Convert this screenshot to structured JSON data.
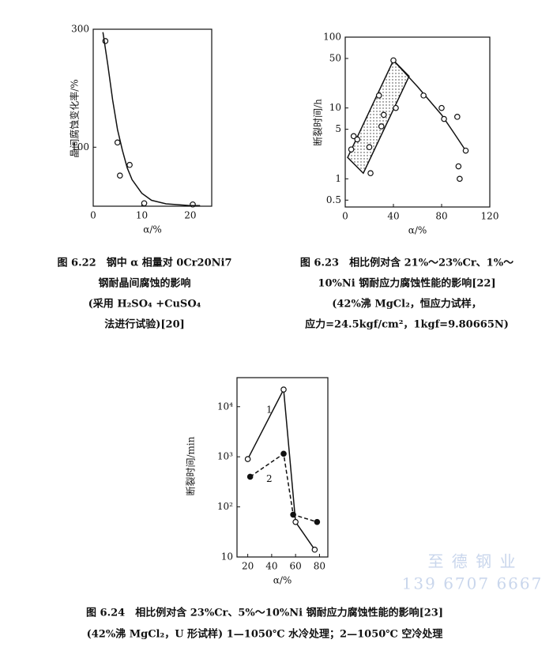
{
  "chart_data": [
    {
      "type": "line",
      "ylabel": "晶间腐蚀变化率/%",
      "xlabel": "α/%",
      "xlim": [
        0,
        24.4
      ],
      "xticks": [
        0,
        10,
        20
      ],
      "ylim": [
        0,
        300
      ],
      "yticks": [
        100,
        300
      ],
      "log_y": false,
      "series": [
        {
          "x": [
            2.5,
            5,
            5.5,
            7.5,
            10.5,
            20.5
          ],
          "values": [
            280,
            108,
            52,
            70,
            5,
            3
          ],
          "marker": "open",
          "line": "none",
          "color": "#111111"
        },
        {
          "x": [
            2,
            3,
            4,
            5,
            6,
            7,
            8,
            10,
            12,
            15,
            20,
            22
          ],
          "values": [
            295,
            240,
            180,
            130,
            95,
            65,
            45,
            22,
            10,
            4,
            1,
            1
          ],
          "marker": "none",
          "line": "solid",
          "color": "#111111"
        }
      ],
      "caption": [
        "图 6.22　钢中 α 相量对 0Cr20Ni7",
        "钢耐晶间腐蚀的影响",
        "(采用 H₂SO₄ +CuSO₄",
        "法进行试验)[20]"
      ]
    },
    {
      "type": "line",
      "ylabel": "断裂时间/h",
      "xlabel": "α/%",
      "xlim": [
        0,
        120
      ],
      "xticks": [
        0,
        40,
        80,
        120
      ],
      "ylim": [
        0.4,
        100
      ],
      "yticks": [
        0.5,
        1,
        5,
        10,
        50,
        100
      ],
      "log_y": true,
      "series": [
        {
          "x": [
            2,
            40,
            53,
            15
          ],
          "values": [
            2,
            47,
            28,
            1.2
          ],
          "marker": "none",
          "line": "solid",
          "fill": "dotted",
          "color": "#111111"
        },
        {
          "x": [
            40,
            60,
            80,
            90,
            100
          ],
          "values": [
            47,
            20,
            8,
            4.5,
            2.5
          ],
          "marker": "none",
          "line": "solid",
          "color": "#111111"
        },
        {
          "x": [
            5,
            7,
            10,
            20,
            21,
            28,
            30,
            32,
            40,
            42,
            65,
            80,
            82,
            93,
            94,
            95,
            100
          ],
          "values": [
            2.6,
            4,
            3.6,
            2.8,
            1.2,
            15,
            5.5,
            8,
            47,
            10,
            15,
            10,
            7,
            7.5,
            1.5,
            1,
            2.5
          ],
          "marker": "open",
          "line": "none",
          "color": "#111111"
        }
      ],
      "caption": [
        "图 6.23　相比例对含 21%～23%Cr、1%～",
        "10%Ni 钢耐应力腐蚀性能的影响[22]",
        "(42%沸 MgCl₂，恒应力试样，",
        "应力=24.5kgf/cm²，1kgf=9.80665N)"
      ]
    },
    {
      "type": "line",
      "ylabel": "断裂时间/min",
      "xlabel": "α/%",
      "xlim": [
        11,
        87
      ],
      "xticks": [
        20,
        40,
        60,
        80
      ],
      "ylim": [
        10,
        38000
      ],
      "yticks": [
        10,
        {
          "value": 100,
          "label": "10²"
        },
        {
          "value": 1000,
          "label": "10³"
        },
        {
          "value": 10000,
          "label": "10⁴"
        }
      ],
      "log_y": true,
      "series": [
        {
          "name": "1",
          "x": [
            20,
            50,
            60,
            76
          ],
          "values": [
            900,
            22000,
            50,
            14
          ],
          "marker": "open",
          "line": "solid",
          "color": "#111111"
        },
        {
          "name": "2",
          "x": [
            22,
            50,
            58,
            78
          ],
          "values": [
            400,
            1150,
            70,
            50
          ],
          "marker": "filled",
          "line": "dashed",
          "color": "#111111"
        }
      ],
      "caption": [
        "图 6.24　相比例对含 23%Cr、5%～10%Ni 钢耐应力腐蚀性能的影响[23]",
        "(42%沸 MgCl₂，U 形试样) 1—1050℃ 水冷处理；2—1050℃ 空冷处理"
      ]
    }
  ],
  "watermark": [
    "至 德 钢 业",
    "139 6707 6667"
  ]
}
